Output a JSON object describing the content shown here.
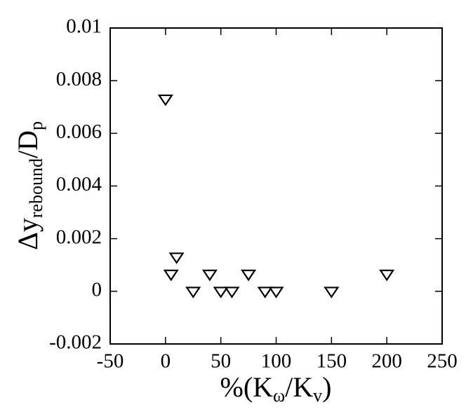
{
  "chart_data": {
    "type": "scatter",
    "xlabel": [
      "%(K",
      "ω",
      "/K",
      "v",
      ")"
    ],
    "ylabel": [
      "Δy",
      "rebound",
      "/D",
      "p"
    ],
    "x": [
      0,
      5,
      10,
      25,
      40,
      50,
      60,
      75,
      90,
      100,
      150,
      200
    ],
    "series": [
      {
        "color": "#000000",
        "marker": "triangle-down",
        "values": [
          0.0073,
          0.00065,
          0.0013,
          0,
          0.00065,
          0,
          0,
          0.00065,
          0,
          0,
          0,
          0.00065
        ]
      }
    ],
    "xlim": [
      -50,
      250
    ],
    "xticks": [
      -50,
      0,
      50,
      100,
      150,
      200,
      250
    ],
    "ylim": [
      -0.002,
      0.01
    ],
    "yticks": [
      -0.002,
      0,
      0.002,
      0.004,
      0.006,
      0.008,
      0.01
    ]
  }
}
